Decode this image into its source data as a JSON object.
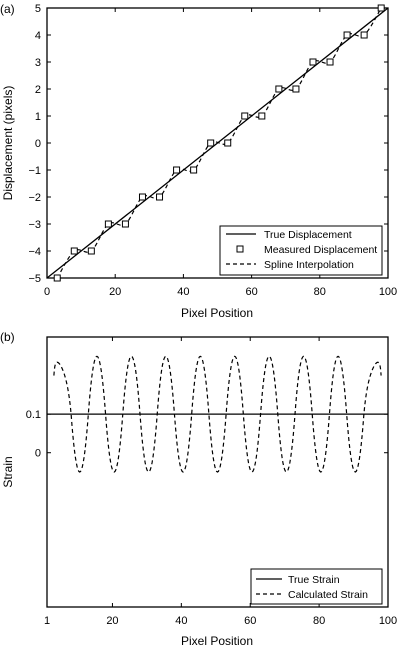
{
  "chart_data": [
    {
      "panel_label": "(a)",
      "type": "line",
      "xlabel": "Pixel Position",
      "ylabel": "Displacement (pixels)",
      "xlim": [
        0,
        100
      ],
      "ylim": [
        -5,
        5
      ],
      "xticks": [
        "0",
        "20",
        "40",
        "60",
        "80",
        "100"
      ],
      "yticks": [
        "-5",
        "-4",
        "-3",
        "-2",
        "-1",
        "0",
        "1",
        "2",
        "3",
        "4",
        "5"
      ],
      "legend_position": "bottom-right",
      "grid": false,
      "series": [
        {
          "name": "True Displacement",
          "style": "solid",
          "x": [
            0,
            100
          ],
          "y": [
            -5,
            5
          ]
        },
        {
          "name": "Measured Displacement",
          "style": "square-markers",
          "x": [
            3,
            8,
            13,
            18,
            23,
            28,
            33,
            38,
            43,
            48,
            53,
            58,
            63,
            68,
            73,
            78,
            83,
            88,
            93,
            98
          ],
          "y": [
            -5,
            -4,
            -4,
            -3,
            -3,
            -2,
            -2,
            -1,
            -1,
            0,
            0,
            1,
            1,
            2,
            2,
            3,
            3,
            4,
            4,
            5
          ]
        },
        {
          "name": "Spline Interpolation",
          "style": "dashed"
        }
      ]
    },
    {
      "panel_label": "(b)",
      "type": "line",
      "xlabel": "Pixel Position",
      "ylabel": "Strain",
      "xlim": [
        1,
        100
      ],
      "ylim": [
        -0.4,
        0.3
      ],
      "xticks": [
        "1",
        "20",
        "40",
        "60",
        "80",
        "100"
      ],
      "yticks": [
        "0",
        "0.1"
      ],
      "legend_position": "bottom-right",
      "grid": false,
      "series": [
        {
          "name": "True Strain",
          "style": "solid",
          "x": [
            1,
            100
          ],
          "y": [
            0.1,
            0.1
          ]
        },
        {
          "name": "Calculated Strain",
          "style": "dashed"
        }
      ]
    }
  ]
}
